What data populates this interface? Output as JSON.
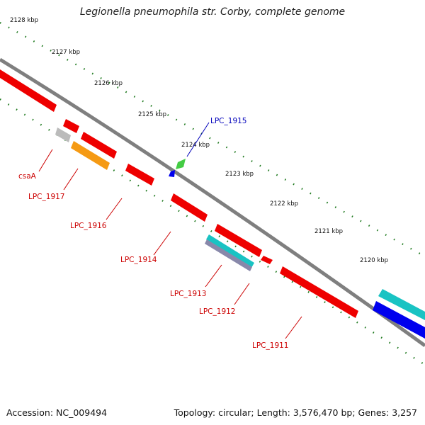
{
  "title": "Legionella pneumophila str. Corby, complete genome",
  "footer": {
    "accession": "Accession: NC_009494",
    "stats": "Topology: circular; Length: 3,576,470 bp; Genes: 3,257"
  },
  "ticks": [
    "2128 kbp",
    "2127 kbp",
    "2126 kbp",
    "2125 kbp",
    "2124 kbp",
    "2123 kbp",
    "2122 kbp",
    "2121 kbp",
    "2120 kbp"
  ],
  "genes": [
    "csaA",
    "LPC_1917",
    "LPC_1916",
    "LPC_1915",
    "LPC_1914",
    "LPC_1913",
    "LPC_1912",
    "LPC_1911"
  ],
  "colors": {
    "backbone": "#7f7f7f",
    "tick": "#1f7a1f",
    "gene": "#ee0000",
    "gene_label": "#cc0000",
    "highlight_label": "#0000bb",
    "pseudo": "#bbbbbb",
    "orange": "#f59a14",
    "green": "#44cc44",
    "blue": "#0000ee",
    "cyan": "#19c3c3"
  }
}
